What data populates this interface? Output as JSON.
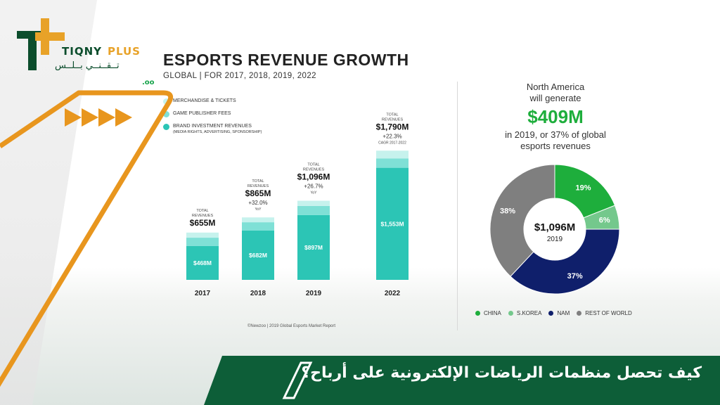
{
  "logo": {
    "name_left": "TIQNY",
    "name_right": "PLUS",
    "name_arabic": "تــقــنــي بــلــس"
  },
  "infographic": {
    "title": "ESPORTS REVENUE GROWTH",
    "subtitle": "GLOBAL | FOR 2017, 2018, 2019, 2022",
    "fragment": ".oo",
    "source": "©Newzoo | 2019 Global Esports Market Report"
  },
  "legend": {
    "merch": "MERCHANDISE & TICKETS",
    "publisher": "GAME PUBLISHER FEES",
    "brand": "BRAND INVESTMENT REVENUES",
    "brand_sub": "(MEDIA RIGHTS, ADVERTISING, SPONSORSHIP)"
  },
  "north_america": {
    "line1": "North America",
    "line2": "will generate",
    "value": "$409M",
    "line3": "in 2019, or 37% of global",
    "line4": "esports revenues"
  },
  "donut_legend": [
    "CHINA",
    "S.KOREA",
    "NAM",
    "REST OF WORLD"
  ],
  "banner": {
    "title": "كيف تحصل منظمات الرياضات الإلكترونية على أرباح؟"
  },
  "colors": {
    "brand": "#2cc5b5",
    "publisher": "#7fe0d6",
    "merch": "#c6f2ed",
    "china": "#1eae3c",
    "skorea": "#74c88c",
    "nam": "#0f1f6b",
    "row": "#7f7f7f",
    "orange": "#e8961e",
    "green": "#0d5e38"
  },
  "chart_data": [
    {
      "type": "bar",
      "title": "ESPORTS REVENUE GROWTH",
      "subtitle": "GLOBAL | FOR 2017, 2018, 2019, 2022",
      "categories": [
        "2017",
        "2018",
        "2019",
        "2022"
      ],
      "totals": [
        655,
        865,
        1096,
        1790
      ],
      "total_label": "TOTAL REVENUES",
      "total_labels": [
        "$655M",
        "$865M",
        "$1,096M",
        "$1,790M"
      ],
      "growth_labels": [
        "",
        "+32.0%",
        "+26.7%",
        "+22.3%"
      ],
      "growth_notes": [
        "",
        "YoY",
        "YoY",
        "CAGR 2017-2022"
      ],
      "series": [
        {
          "name": "BRAND INVESTMENT REVENUES",
          "values": [
            468,
            682,
            897,
            1553
          ],
          "labels": [
            "$468M",
            "$682M",
            "$897M",
            "$1,553M"
          ]
        },
        {
          "name": "GAME PUBLISHER FEES",
          "values": [
            116,
            116,
            127,
            130
          ]
        },
        {
          "name": "MERCHANDISE & TICKETS",
          "values": [
            71,
            67,
            72,
            107
          ]
        }
      ],
      "ylim": [
        0,
        1900
      ]
    },
    {
      "type": "pie",
      "center_value": "$1,096M",
      "center_year": "2019",
      "categories": [
        "CHINA",
        "S.KOREA",
        "NAM",
        "REST OF WORLD"
      ],
      "values": [
        19,
        6,
        37,
        38
      ],
      "labels": [
        "19%",
        "6%",
        "37%",
        "38%"
      ]
    }
  ]
}
